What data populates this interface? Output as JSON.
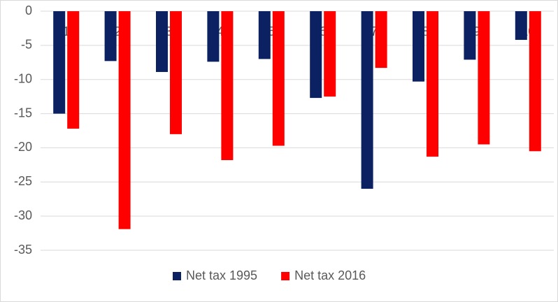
{
  "chart_data": {
    "type": "bar",
    "categories": [
      "1",
      "2",
      "3",
      "4",
      "5",
      "6",
      "7",
      "8",
      "9",
      "10"
    ],
    "series": [
      {
        "name": "Net tax 1995",
        "color": "#0b2161",
        "values": [
          -15.0,
          -7.3,
          -8.9,
          -7.4,
          -7.0,
          -12.7,
          -26.0,
          -10.3,
          -7.1,
          -4.2
        ]
      },
      {
        "name": "Net tax 2016",
        "color": "#ff0000",
        "values": [
          -17.2,
          -31.9,
          -18.0,
          -21.8,
          -19.7,
          -12.5,
          -8.3,
          -21.3,
          -19.5,
          -20.5
        ]
      }
    ],
    "ylim": [
      -35,
      0
    ],
    "yticks": [
      0,
      -5,
      -10,
      -15,
      -20,
      -25,
      -30,
      -35
    ],
    "grid": true,
    "legend": "bottom"
  }
}
